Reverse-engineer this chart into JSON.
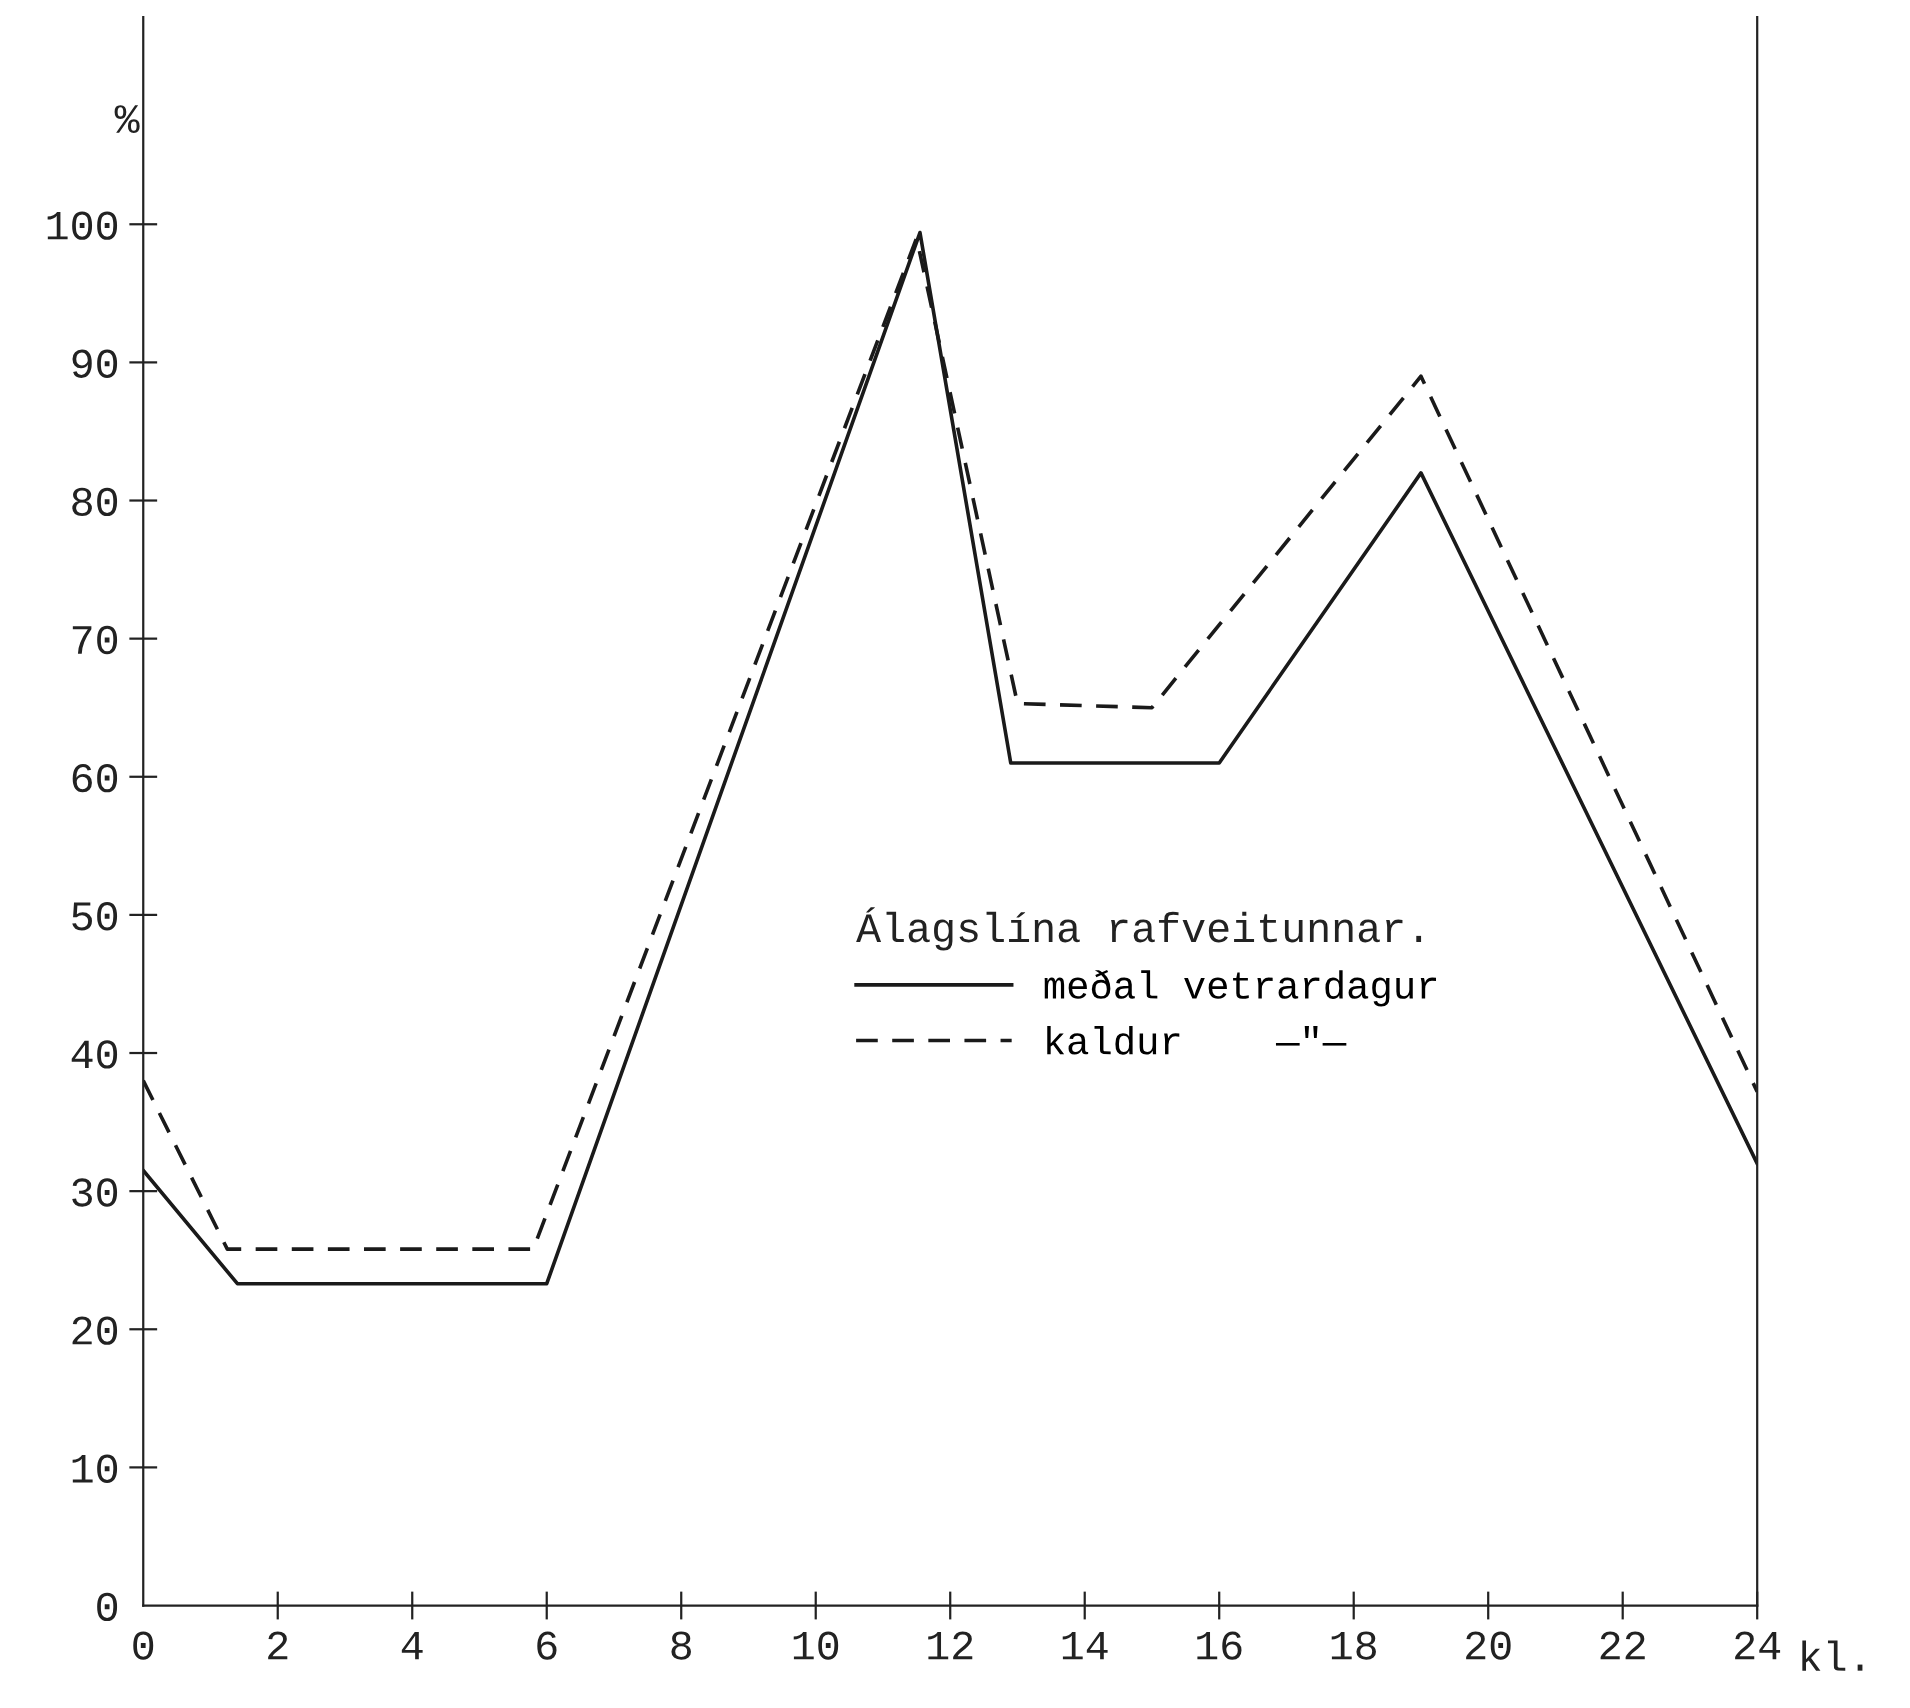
{
  "chart_data": {
    "type": "line",
    "ylabel": "%",
    "xlabel": "kl.",
    "legend_title": "Álagslína rafveitunnar.",
    "xlim": [
      0,
      24
    ],
    "ylim": [
      0,
      115
    ],
    "xticks": [
      0,
      2,
      4,
      6,
      8,
      10,
      12,
      14,
      16,
      18,
      20,
      22,
      24
    ],
    "yticks": [
      0,
      10,
      20,
      30,
      40,
      50,
      60,
      70,
      80,
      90,
      100
    ],
    "grid": false,
    "legend": "center",
    "marker": "none",
    "series": [
      {
        "name": "meðal vetrardagur",
        "color": "#1a1a1a",
        "line_style": "solid",
        "x": [
          0,
          1.4,
          6,
          11.55,
          12.9,
          16,
          19,
          24
        ],
        "values": [
          31.5,
          23.3,
          23.3,
          99.4,
          61,
          61,
          82,
          32
        ]
      },
      {
        "name": "kaldur    —\"—",
        "color": "#1a1a1a",
        "line_style": "dashed",
        "x": [
          0,
          1.25,
          5.8,
          11.5,
          13,
          15,
          19,
          24
        ],
        "values": [
          38,
          25.8,
          25.8,
          99,
          65.3,
          65,
          89,
          37.2
        ]
      }
    ]
  }
}
